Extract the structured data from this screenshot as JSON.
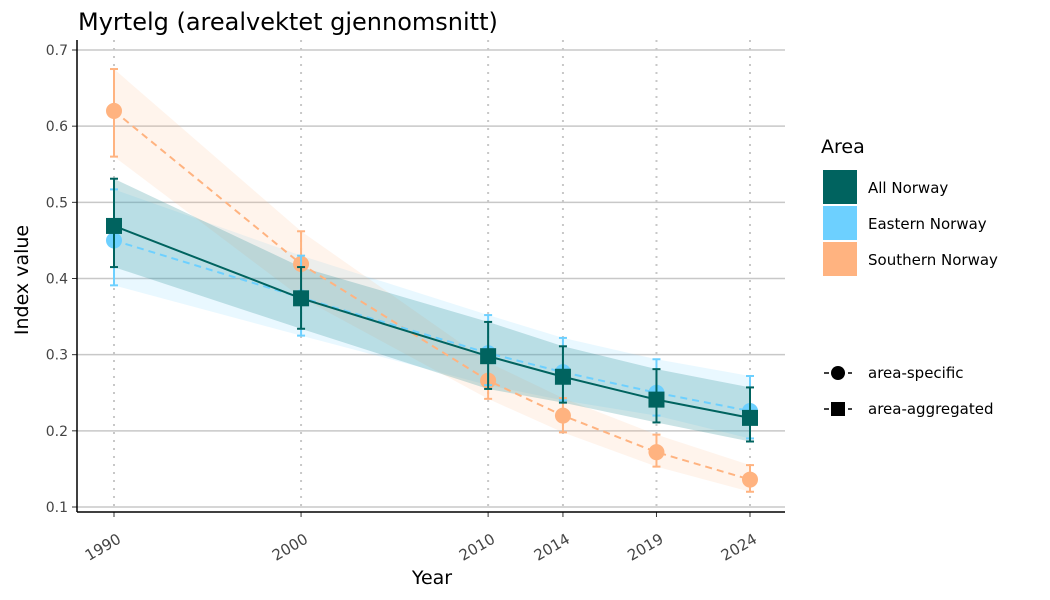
{
  "chart_data": {
    "type": "line",
    "title": "Myrtelg (arealvektet gjennomsnitt)",
    "xlabel": "Year",
    "ylabel": "Index value",
    "x": [
      1990,
      2000,
      2010,
      2014,
      2019,
      2024
    ],
    "xticks": [
      "1990",
      "2000",
      "2010",
      "2014",
      "2019",
      "2024"
    ],
    "ylim": [
      0.1,
      0.7
    ],
    "yticks": [
      "0.1",
      "0.2",
      "0.3",
      "0.4",
      "0.5",
      "0.6",
      "0.7"
    ],
    "legend_title": "Area",
    "series": [
      {
        "name": "All Norway",
        "color": "#00635F",
        "marker": "square",
        "line": "solid",
        "values": [
          0.469,
          0.374,
          0.298,
          0.271,
          0.241,
          0.217
        ],
        "lower": [
          0.415,
          0.334,
          0.255,
          0.237,
          0.211,
          0.186
        ],
        "upper": [
          0.531,
          0.415,
          0.343,
          0.311,
          0.281,
          0.257
        ]
      },
      {
        "name": "Eastern Norway",
        "color": "#6DD0FF",
        "marker": "circle",
        "line": "dashed",
        "values": [
          0.45,
          0.375,
          0.302,
          0.277,
          0.25,
          0.226
        ],
        "lower": [
          0.391,
          0.325,
          0.26,
          0.24,
          0.22,
          0.19
        ],
        "upper": [
          0.517,
          0.43,
          0.352,
          0.322,
          0.294,
          0.272
        ]
      },
      {
        "name": "Southern Norway",
        "color": "#FFB380",
        "marker": "circle",
        "line": "dashed",
        "values": [
          0.62,
          0.419,
          0.266,
          0.22,
          0.172,
          0.136
        ],
        "lower": [
          0.56,
          0.375,
          0.242,
          0.198,
          0.153,
          0.12
        ],
        "upper": [
          0.675,
          0.462,
          0.29,
          0.243,
          0.195,
          0.155
        ]
      }
    ],
    "shape_legend": [
      "area-specific",
      "area-aggregated"
    ]
  }
}
